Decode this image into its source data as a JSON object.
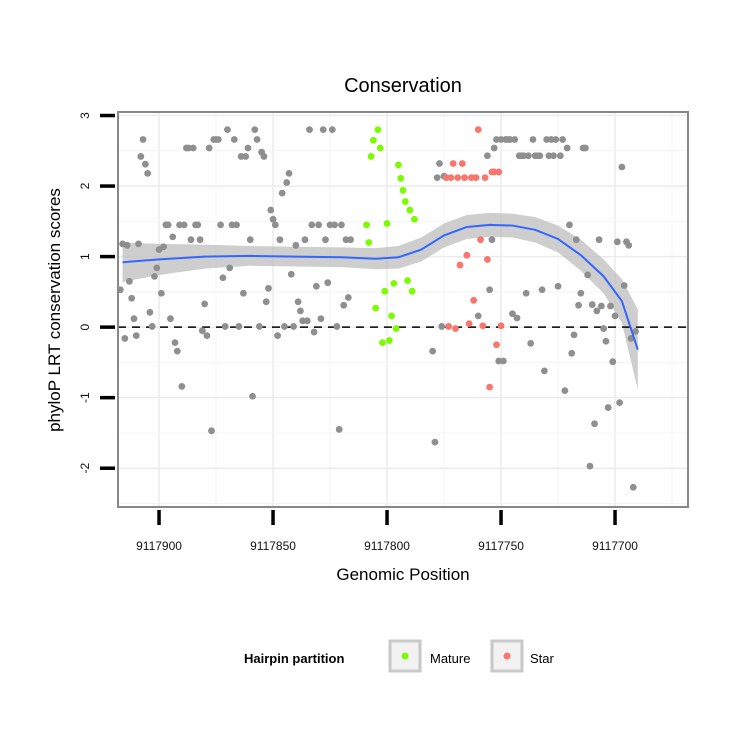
{
  "chart_data": {
    "type": "scatter",
    "title": "Conservation",
    "xlabel": "Genomic Position",
    "ylabel": "phyloP LRT conservation scores",
    "x_reversed": true,
    "xlim": [
      9117918,
      9117668
    ],
    "ylim": [
      -2.55,
      3.05
    ],
    "x_ticks": [
      9117900,
      9117850,
      9117800,
      9117750,
      9117700
    ],
    "x_tick_labels": [
      "9117900",
      "9117850",
      "9117800",
      "9117750",
      "9117700"
    ],
    "y_ticks": [
      -2,
      -1,
      0,
      1,
      2,
      3
    ],
    "y_tick_labels": [
      "-2",
      "-1",
      "0",
      "1",
      "2",
      "3"
    ],
    "grid": true,
    "reference_line": {
      "y": 0,
      "style": "dashed"
    },
    "legend": {
      "title": "Hairpin partition",
      "position": "bottom",
      "entries": [
        {
          "label": "Mature",
          "color": "#7cfc00"
        },
        {
          "label": "Star",
          "color": "#f8766d"
        }
      ]
    },
    "colors": {
      "other": "#8f8f8f",
      "mature": "#7cfc00",
      "star": "#f8766d",
      "smooth": "#3366ff",
      "band": "#bdbdbd"
    },
    "series": [
      {
        "group": "other",
        "points": [
          [
            9117917,
            0.53
          ],
          [
            9117916,
            1.18
          ],
          [
            9117915,
            -0.16
          ],
          [
            9117914,
            1.16
          ],
          [
            9117913,
            0.65
          ],
          [
            9117912,
            0.41
          ],
          [
            9117911,
            0.12
          ],
          [
            9117910,
            -0.12
          ],
          [
            9117909,
            1.18
          ],
          [
            9117908,
            2.42
          ],
          [
            9117907,
            2.66
          ],
          [
            9117906,
            2.31
          ],
          [
            9117905,
            2.18
          ],
          [
            9117904,
            0.21
          ],
          [
            9117903,
            0.01
          ],
          [
            9117902,
            0.72
          ],
          [
            9117901,
            0.84
          ],
          [
            9117900,
            1.1
          ],
          [
            9117899,
            0.48
          ],
          [
            9117898,
            1.14
          ],
          [
            9117897,
            1.45
          ],
          [
            9117896,
            1.45
          ],
          [
            9117895,
            0.12
          ],
          [
            9117894,
            1.28
          ],
          [
            9117893,
            -0.22
          ],
          [
            9117892,
            -0.34
          ],
          [
            9117891,
            1.45
          ],
          [
            9117890,
            -0.84
          ],
          [
            9117889,
            1.45
          ],
          [
            9117888,
            2.54
          ],
          [
            9117887,
            2.54
          ],
          [
            9117886,
            1.24
          ],
          [
            9117885,
            2.54
          ],
          [
            9117884,
            1.45
          ],
          [
            9117883,
            1.45
          ],
          [
            9117882,
            1.24
          ],
          [
            9117881,
            -0.05
          ],
          [
            9117880,
            0.33
          ],
          [
            9117879,
            -0.12
          ],
          [
            9117878,
            2.54
          ],
          [
            9117877,
            -1.47
          ],
          [
            9117876,
            2.66
          ],
          [
            9117875,
            2.66
          ],
          [
            9117874,
            2.66
          ],
          [
            9117873,
            1.45
          ],
          [
            9117872,
            0.7
          ],
          [
            9117871,
            0.01
          ],
          [
            9117870,
            2.8
          ],
          [
            9117869,
            0.84
          ],
          [
            9117868,
            1.45
          ],
          [
            9117867,
            2.66
          ],
          [
            9117866,
            1.45
          ],
          [
            9117865,
            0.01
          ],
          [
            9117864,
            2.42
          ],
          [
            9117863,
            0.48
          ],
          [
            9117862,
            2.42
          ],
          [
            9117861,
            2.54
          ],
          [
            9117860,
            1.24
          ],
          [
            9117859,
            -0.98
          ],
          [
            9117858,
            2.8
          ],
          [
            9117857,
            2.66
          ],
          [
            9117856,
            0.01
          ],
          [
            9117855,
            2.48
          ],
          [
            9117854,
            2.42
          ],
          [
            9117853,
            0.36
          ],
          [
            9117852,
            0.55
          ],
          [
            9117851,
            1.66
          ],
          [
            9117850,
            1.53
          ],
          [
            9117849,
            1.45
          ],
          [
            9117848,
            -0.12
          ],
          [
            9117847,
            1.24
          ],
          [
            9117846,
            1.9
          ],
          [
            9117845,
            0.01
          ],
          [
            9117844,
            2.05
          ],
          [
            9117843,
            2.18
          ],
          [
            9117842,
            0.75
          ],
          [
            9117841,
            0.01
          ],
          [
            9117840,
            1.16
          ],
          [
            9117839,
            0.36
          ],
          [
            9117838,
            0.23
          ],
          [
            9117837,
            0.09
          ],
          [
            9117836,
            1.24
          ],
          [
            9117835,
            0.09
          ],
          [
            9117834,
            2.8
          ],
          [
            9117833,
            1.45
          ],
          [
            9117832,
            -0.07
          ],
          [
            9117831,
            0.58
          ],
          [
            9117830,
            1.45
          ],
          [
            9117829,
            0.12
          ],
          [
            9117828,
            2.8
          ],
          [
            9117827,
            1.24
          ],
          [
            9117826,
            0.63
          ],
          [
            9117825,
            1.45
          ],
          [
            9117824,
            2.8
          ],
          [
            9117823,
            1.45
          ],
          [
            9117822,
            0.01
          ],
          [
            9117821,
            -1.45
          ],
          [
            9117820,
            1.45
          ],
          [
            9117819,
            0.31
          ],
          [
            9117818,
            1.24
          ],
          [
            9117817,
            0.42
          ],
          [
            9117816,
            1.24
          ],
          [
            9117780,
            -0.34
          ],
          [
            9117779,
            -1.63
          ],
          [
            9117778,
            2.12
          ],
          [
            9117777,
            2.32
          ],
          [
            9117776,
            0.01
          ],
          [
            9117775,
            2.14
          ],
          [
            9117760,
            0.16
          ],
          [
            9117756,
            2.43
          ],
          [
            9117755,
            0.53
          ],
          [
            9117754,
            1.24
          ],
          [
            9117753,
            2.54
          ],
          [
            9117752,
            2.66
          ],
          [
            9117751,
            -0.48
          ],
          [
            9117750,
            2.66
          ],
          [
            9117749,
            -0.48
          ],
          [
            9117748,
            2.66
          ],
          [
            9117747,
            2.66
          ],
          [
            9117746,
            2.66
          ],
          [
            9117745,
            0.19
          ],
          [
            9117744,
            2.66
          ],
          [
            9117743,
            0.13
          ],
          [
            9117742,
            2.43
          ],
          [
            9117741,
            2.43
          ],
          [
            9117740,
            2.43
          ],
          [
            9117739,
            0.48
          ],
          [
            9117738,
            2.43
          ],
          [
            9117737,
            -0.23
          ],
          [
            9117736,
            2.66
          ],
          [
            9117735,
            2.43
          ],
          [
            9117734,
            2.43
          ],
          [
            9117733,
            2.43
          ],
          [
            9117732,
            0.53
          ],
          [
            9117731,
            -0.62
          ],
          [
            9117730,
            2.66
          ],
          [
            9117729,
            2.43
          ],
          [
            9117728,
            2.66
          ],
          [
            9117727,
            2.43
          ],
          [
            9117726,
            2.66
          ],
          [
            9117725,
            0.58
          ],
          [
            9117724,
            2.43
          ],
          [
            9117723,
            2.66
          ],
          [
            9117722,
            -0.9
          ],
          [
            9117721,
            2.54
          ],
          [
            9117720,
            1.45
          ],
          [
            9117719,
            -0.37
          ],
          [
            9117718,
            -0.11
          ],
          [
            9117717,
            1.24
          ],
          [
            9117716,
            0.31
          ],
          [
            9117715,
            0.48
          ],
          [
            9117714,
            2.54
          ],
          [
            9117713,
            2.54
          ],
          [
            9117712,
            0.74
          ],
          [
            9117711,
            -1.97
          ],
          [
            9117710,
            0.32
          ],
          [
            9117709,
            -1.37
          ],
          [
            9117708,
            0.23
          ],
          [
            9117707,
            1.24
          ],
          [
            9117706,
            0.3
          ],
          [
            9117705,
            -0.02
          ],
          [
            9117704,
            -0.2
          ],
          [
            9117703,
            -1.14
          ],
          [
            9117702,
            0.3
          ],
          [
            9117701,
            -0.49
          ],
          [
            9117700,
            0.16
          ],
          [
            9117699,
            1.21
          ],
          [
            9117698,
            -1.07
          ],
          [
            9117697,
            2.27
          ],
          [
            9117696,
            0.59
          ],
          [
            9117695,
            1.21
          ],
          [
            9117694,
            1.16
          ],
          [
            9117693,
            -0.16
          ],
          [
            9117692,
            -2.27
          ],
          [
            9117691,
            -0.06
          ]
        ]
      },
      {
        "group": "mature",
        "name": "Mature",
        "points": [
          [
            9117809,
            1.45
          ],
          [
            9117808,
            1.2
          ],
          [
            9117807,
            2.42
          ],
          [
            9117806,
            2.65
          ],
          [
            9117805,
            0.27
          ],
          [
            9117804,
            2.8
          ],
          [
            9117803,
            2.54
          ],
          [
            9117802,
            -0.22
          ],
          [
            9117801,
            0.51
          ],
          [
            9117800,
            1.47
          ],
          [
            9117799,
            -0.19
          ],
          [
            9117798,
            0.16
          ],
          [
            9117797,
            0.62
          ],
          [
            9117796,
            -0.02
          ],
          [
            9117795,
            2.3
          ],
          [
            9117794,
            2.11
          ],
          [
            9117793,
            1.94
          ],
          [
            9117792,
            1.78
          ],
          [
            9117791,
            0.66
          ],
          [
            9117790,
            1.66
          ],
          [
            9117789,
            0.51
          ],
          [
            9117788,
            1.53
          ]
        ]
      },
      {
        "group": "star",
        "name": "Star",
        "points": [
          [
            9117774,
            2.12
          ],
          [
            9117773,
            0.01
          ],
          [
            9117772,
            2.12
          ],
          [
            9117771,
            2.32
          ],
          [
            9117770,
            -0.02
          ],
          [
            9117769,
            2.12
          ],
          [
            9117768,
            0.88
          ],
          [
            9117767,
            2.32
          ],
          [
            9117766,
            2.12
          ],
          [
            9117765,
            1.02
          ],
          [
            9117764,
            0.05
          ],
          [
            9117763,
            2.12
          ],
          [
            9117762,
            0.38
          ],
          [
            9117761,
            2.12
          ],
          [
            9117760,
            2.8
          ],
          [
            9117759,
            1.24
          ],
          [
            9117758,
            0.02
          ],
          [
            9117757,
            2.12
          ],
          [
            9117756,
            0.96
          ],
          [
            9117755,
            -0.85
          ],
          [
            9117754,
            2.2
          ],
          [
            9117753,
            2.2
          ],
          [
            9117752,
            -0.25
          ],
          [
            9117751,
            2.2
          ],
          [
            9117750,
            0.02
          ]
        ]
      }
    ],
    "smooth": {
      "method": "loess",
      "line": [
        [
          9117916,
          0.92
        ],
        [
          9117900,
          0.96
        ],
        [
          9117880,
          1.0
        ],
        [
          9117860,
          1.01
        ],
        [
          9117840,
          1.0
        ],
        [
          9117820,
          0.99
        ],
        [
          9117805,
          0.97
        ],
        [
          9117795,
          0.99
        ],
        [
          9117785,
          1.1
        ],
        [
          9117775,
          1.3
        ],
        [
          9117765,
          1.42
        ],
        [
          9117755,
          1.45
        ],
        [
          9117745,
          1.44
        ],
        [
          9117735,
          1.38
        ],
        [
          9117725,
          1.25
        ],
        [
          9117715,
          1.02
        ],
        [
          9117705,
          0.72
        ],
        [
          9117697,
          0.37
        ],
        [
          9117690,
          -0.32
        ]
      ],
      "upper": [
        [
          9117916,
          1.2
        ],
        [
          9117900,
          1.18
        ],
        [
          9117880,
          1.17
        ],
        [
          9117860,
          1.15
        ],
        [
          9117840,
          1.14
        ],
        [
          9117820,
          1.13
        ],
        [
          9117805,
          1.12
        ],
        [
          9117795,
          1.15
        ],
        [
          9117785,
          1.27
        ],
        [
          9117775,
          1.47
        ],
        [
          9117765,
          1.59
        ],
        [
          9117755,
          1.62
        ],
        [
          9117745,
          1.61
        ],
        [
          9117735,
          1.56
        ],
        [
          9117725,
          1.44
        ],
        [
          9117715,
          1.24
        ],
        [
          9117705,
          0.96
        ],
        [
          9117697,
          0.68
        ],
        [
          9117690,
          0.25
        ]
      ],
      "lower": [
        [
          9117916,
          0.64
        ],
        [
          9117900,
          0.74
        ],
        [
          9117880,
          0.83
        ],
        [
          9117860,
          0.87
        ],
        [
          9117840,
          0.86
        ],
        [
          9117820,
          0.85
        ],
        [
          9117805,
          0.82
        ],
        [
          9117795,
          0.83
        ],
        [
          9117785,
          0.93
        ],
        [
          9117775,
          1.13
        ],
        [
          9117765,
          1.25
        ],
        [
          9117755,
          1.28
        ],
        [
          9117745,
          1.27
        ],
        [
          9117735,
          1.2
        ],
        [
          9117725,
          1.06
        ],
        [
          9117715,
          0.8
        ],
        [
          9117705,
          0.48
        ],
        [
          9117697,
          0.06
        ],
        [
          9117690,
          -0.89
        ]
      ]
    }
  }
}
